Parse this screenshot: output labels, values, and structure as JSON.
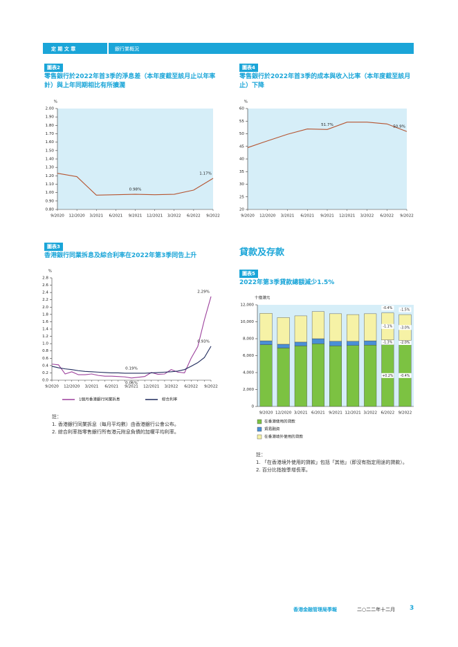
{
  "header": {
    "section": "定 期 文 章",
    "topic": "銀行業概況"
  },
  "section_heading": "貸款及存款",
  "chart_data": [
    {
      "type": "line",
      "tag": "圖表2",
      "title": "零售銀行於2022年首3季的淨息差（本年度截至該月止以年率計）與上年同期相比有所擴濶",
      "y_label": "%",
      "categories": [
        "9/2020",
        "12/2020",
        "3/2021",
        "6/2021",
        "9/2021",
        "12/2021",
        "3/2022",
        "6/2022",
        "9/2022"
      ],
      "series": [
        {
          "name": null,
          "color": "#b5532f",
          "values": [
            1.23,
            1.19,
            0.97,
            0.975,
            0.98,
            0.975,
            0.98,
            1.03,
            1.17
          ],
          "value_labels": [
            null,
            null,
            null,
            null,
            "0.98%",
            null,
            null,
            null,
            "1.17%"
          ]
        }
      ],
      "ylim": [
        0.8,
        2.0
      ],
      "yticks": [
        {
          "value": 0.8,
          "label": "0.80"
        },
        {
          "value": 0.9,
          "label": "0.90"
        },
        {
          "value": 1.0,
          "label": "1.00"
        },
        {
          "value": 1.1,
          "label": "1.10"
        },
        {
          "value": 1.2,
          "label": "1.20"
        },
        {
          "value": 1.3,
          "label": "1.30"
        },
        {
          "value": 1.4,
          "label": "1.40"
        },
        {
          "value": 1.5,
          "label": "1.50"
        },
        {
          "value": 1.6,
          "label": "1.60"
        },
        {
          "value": 1.7,
          "label": "1.70"
        },
        {
          "value": 1.8,
          "label": "1.80"
        },
        {
          "value": 1.9,
          "label": "1.90"
        },
        {
          "value": 2.0,
          "label": "2.00"
        }
      ],
      "grid": false,
      "background": "#d6eef8"
    },
    {
      "type": "line",
      "tag": "圖表4",
      "title": "零售銀行於2022年首3季的成本與收入比率（本年度截至該月止）下降",
      "y_label": "%",
      "categories": [
        "9/2020",
        "12/2020",
        "3/2021",
        "6/2021",
        "9/2021",
        "12/2021",
        "3/2022",
        "6/2022",
        "9/2022"
      ],
      "series": [
        {
          "name": null,
          "color": "#b5532f",
          "values": [
            44.5,
            47.2,
            49.8,
            51.9,
            51.7,
            54.6,
            54.6,
            53.9,
            50.9
          ],
          "value_labels": [
            null,
            null,
            null,
            null,
            "51.7%",
            null,
            null,
            null,
            "50.9%"
          ]
        }
      ],
      "ylim": [
        20,
        60
      ],
      "yticks": [
        20,
        25,
        30,
        35,
        40,
        45,
        50,
        55,
        60
      ],
      "grid": false,
      "background": "#d6eef8"
    },
    {
      "type": "line",
      "tag": "圖表3",
      "title": "香港銀行同業拆息及綜合利率在2022年第3季同告上升",
      "y_label": "%",
      "categories": [
        "9/2020",
        null,
        null,
        "12/2020",
        null,
        null,
        "3/2021",
        null,
        null,
        "6/2021",
        null,
        null,
        "9/2021",
        null,
        null,
        "12/2021",
        null,
        null,
        "3/2022",
        null,
        null,
        "6/2022",
        null,
        null,
        "9/2022"
      ],
      "series": [
        {
          "name": "1個月香港銀行同業拆息",
          "color": "#9b3f9b",
          "values": [
            0.44,
            0.42,
            0.17,
            0.23,
            0.15,
            0.15,
            0.17,
            0.13,
            0.11,
            0.11,
            0.1,
            0.09,
            0.06,
            0.08,
            0.1,
            0.21,
            0.16,
            0.17,
            0.29,
            0.22,
            0.2,
            0.6,
            0.92,
            1.65,
            2.29
          ],
          "value_labels": [
            null,
            null,
            null,
            null,
            null,
            null,
            null,
            null,
            null,
            null,
            null,
            null,
            "0.06%",
            null,
            null,
            null,
            null,
            null,
            null,
            null,
            null,
            null,
            null,
            null,
            "2.29%"
          ]
        },
        {
          "name": "綜合利率",
          "color": "#1f2a5c",
          "values": [
            0.38,
            0.34,
            0.31,
            0.29,
            0.26,
            0.24,
            0.23,
            0.22,
            0.21,
            0.2,
            0.2,
            0.19,
            0.19,
            0.19,
            0.19,
            0.2,
            0.21,
            0.22,
            0.23,
            0.25,
            0.29,
            0.38,
            0.48,
            0.62,
            0.93
          ],
          "value_labels": [
            null,
            null,
            null,
            null,
            null,
            null,
            null,
            null,
            null,
            null,
            null,
            null,
            "0.19%",
            null,
            null,
            null,
            null,
            null,
            null,
            null,
            null,
            null,
            null,
            null,
            "0.93%"
          ]
        }
      ],
      "ylim": [
        0,
        2.8
      ],
      "yticks": [
        {
          "value": 0,
          "label": "0.0"
        },
        0.2,
        0.4,
        0.6,
        0.8,
        {
          "value": 1,
          "label": "1.0"
        },
        1.2,
        1.4,
        1.6,
        1.8,
        {
          "value": 2,
          "label": "2.0"
        },
        2.2,
        2.4,
        2.6,
        2.8
      ],
      "grid": false,
      "background": null,
      "notes": [
        "註：",
        "1. 香港銀行同業拆息（每月平均數）由香港銀行公會公布。",
        "2. 綜合利率指零售銀行所有港元附息負債的加權平均利率。"
      ]
    },
    {
      "type": "stacked_bar",
      "tag": "圖表5",
      "title": "2022年第3季貸款總額減少1.5%",
      "y_label": "十億港元",
      "categories": [
        "9/2020",
        "12/2020",
        "3/2021",
        "6/2021",
        "9/2021",
        "12/2021",
        "3/2022",
        "6/2022",
        "9/2022"
      ],
      "series": [
        {
          "name": "在香港使用的貸款",
          "color": "#7cc242",
          "values": [
            7300,
            6900,
            7150,
            7400,
            7150,
            7200,
            7250,
            7300,
            7300
          ],
          "change_labels": [
            null,
            null,
            null,
            null,
            null,
            null,
            null,
            "+0.2%",
            "-0.4%"
          ]
        },
        {
          "name": "貿易融資",
          "color": "#4a8fd6",
          "values": [
            450,
            450,
            450,
            600,
            550,
            500,
            500,
            550,
            500
          ],
          "change_labels": [
            null,
            null,
            null,
            null,
            null,
            null,
            null,
            "-1.3%",
            "-2.0%"
          ]
        },
        {
          "name": "在香港境外使用的貸款",
          "color": "#f6f2a6",
          "values": [
            3250,
            3150,
            3100,
            3200,
            3250,
            3150,
            3200,
            3200,
            3050
          ],
          "change_labels": [
            null,
            null,
            null,
            null,
            null,
            null,
            null,
            "-1.1%",
            "-3.0%"
          ]
        }
      ],
      "total_change_labels": [
        null,
        null,
        null,
        null,
        null,
        null,
        null,
        "-0.4%",
        "-1.5%"
      ],
      "ylim": [
        0,
        12000
      ],
      "yticks": [
        0,
        {
          "value": 2000,
          "label": "2,000"
        },
        {
          "value": 4000,
          "label": "4,000"
        },
        {
          "value": 6000,
          "label": "6,000"
        },
        {
          "value": 8000,
          "label": "8,000"
        },
        {
          "value": 10000,
          "label": "10,000"
        },
        {
          "value": 12000,
          "label": "12,000"
        }
      ],
      "grid": false,
      "background": "#d6eef8",
      "notes": [
        "註：",
        "1. 「在香港境外使用的貸款」包括「其他」（即沒有指定用途的貸款）。",
        "2. 百分比指按季增長率。"
      ]
    }
  ],
  "footer": {
    "publication": "香港金融管理局季報",
    "date": "二○二二年十二月",
    "page": "3"
  }
}
